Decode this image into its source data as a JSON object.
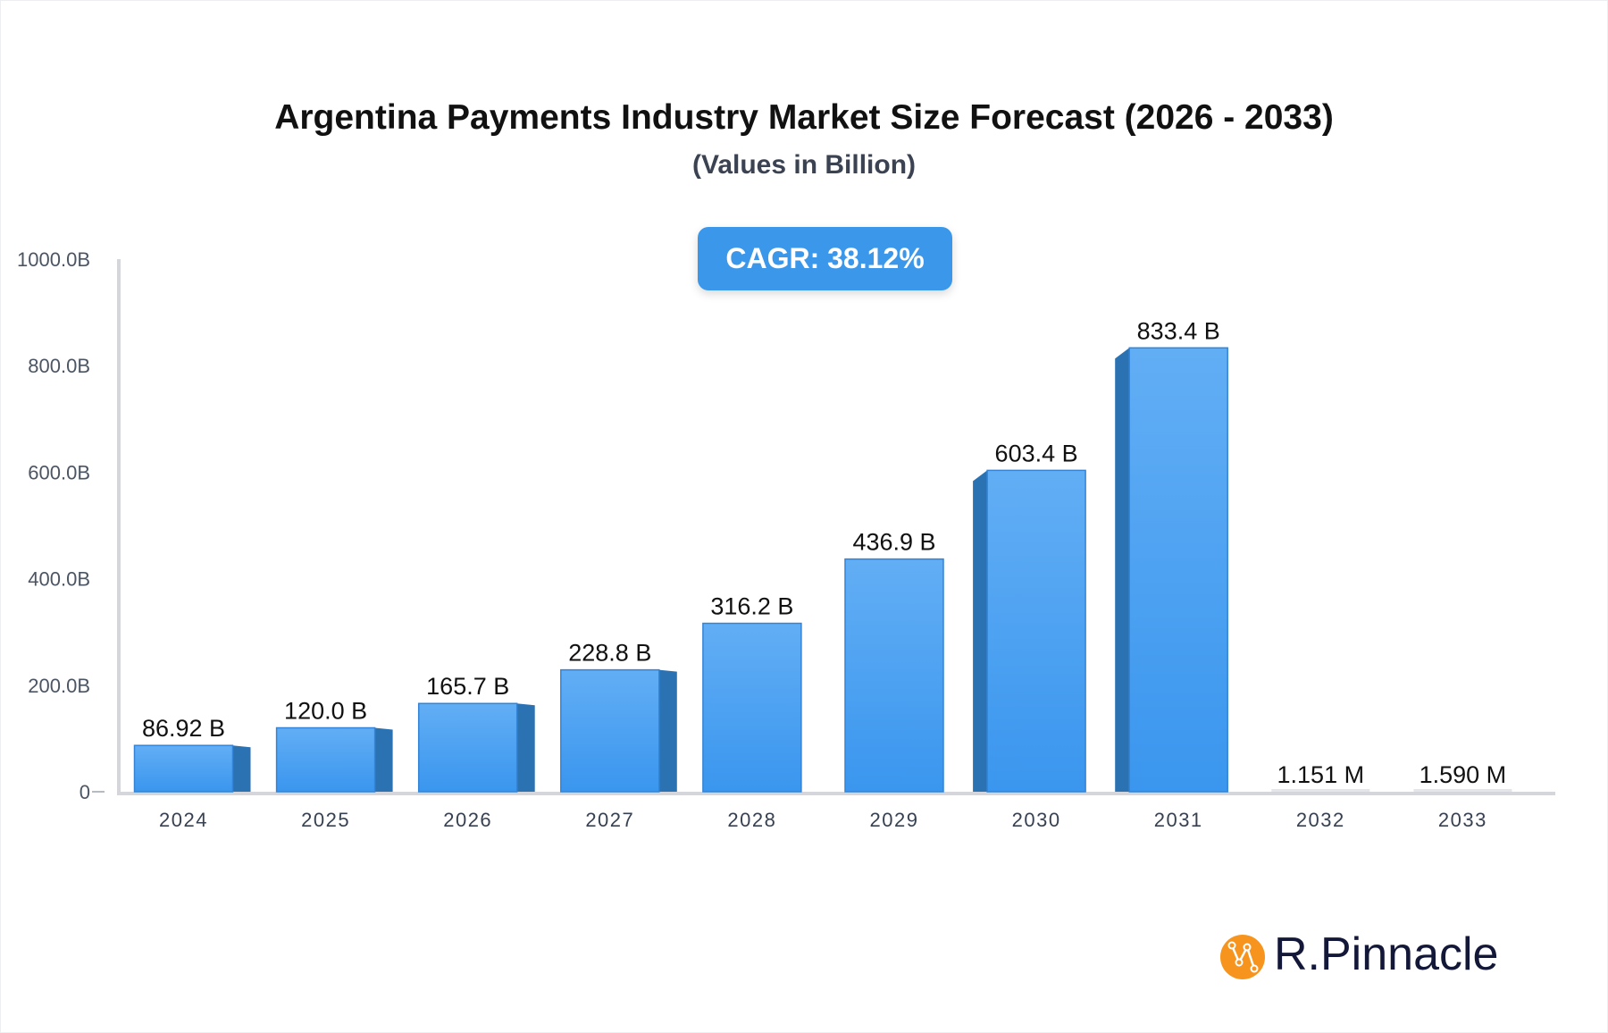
{
  "chart_data": {
    "type": "bar",
    "title": "Argentina Payments Industry Market Size Forecast (2026 - 2033)",
    "subtitle": "(Values in Billion)",
    "categories": [
      "2024",
      "2025",
      "2026",
      "2027",
      "2028",
      "2029",
      "2030",
      "2031",
      "2032",
      "2033"
    ],
    "values": [
      86.92,
      120.0,
      165.7,
      228.8,
      316.2,
      436.9,
      603.4,
      833.4,
      0.001151,
      0.00159
    ],
    "data_labels": [
      "86.92 B",
      "120.0 B",
      "165.7 B",
      "228.8 B",
      "316.2 B",
      "436.9 B",
      "603.4 B",
      "833.4 B",
      "1.151 M",
      "1.590 M"
    ],
    "yticks": [
      0,
      200,
      400,
      600,
      800,
      1000
    ],
    "ytick_labels": [
      "0",
      "200.0B",
      "400.0B",
      "600.0B",
      "800.0B",
      "1000.0B"
    ],
    "ylim": [
      0,
      1000
    ],
    "grid": false,
    "bar_color": "#3b97ea",
    "annotation": "CAGR: 38.12%"
  },
  "brand": {
    "name": "R.Pinnacle",
    "color": "#f7941d"
  }
}
